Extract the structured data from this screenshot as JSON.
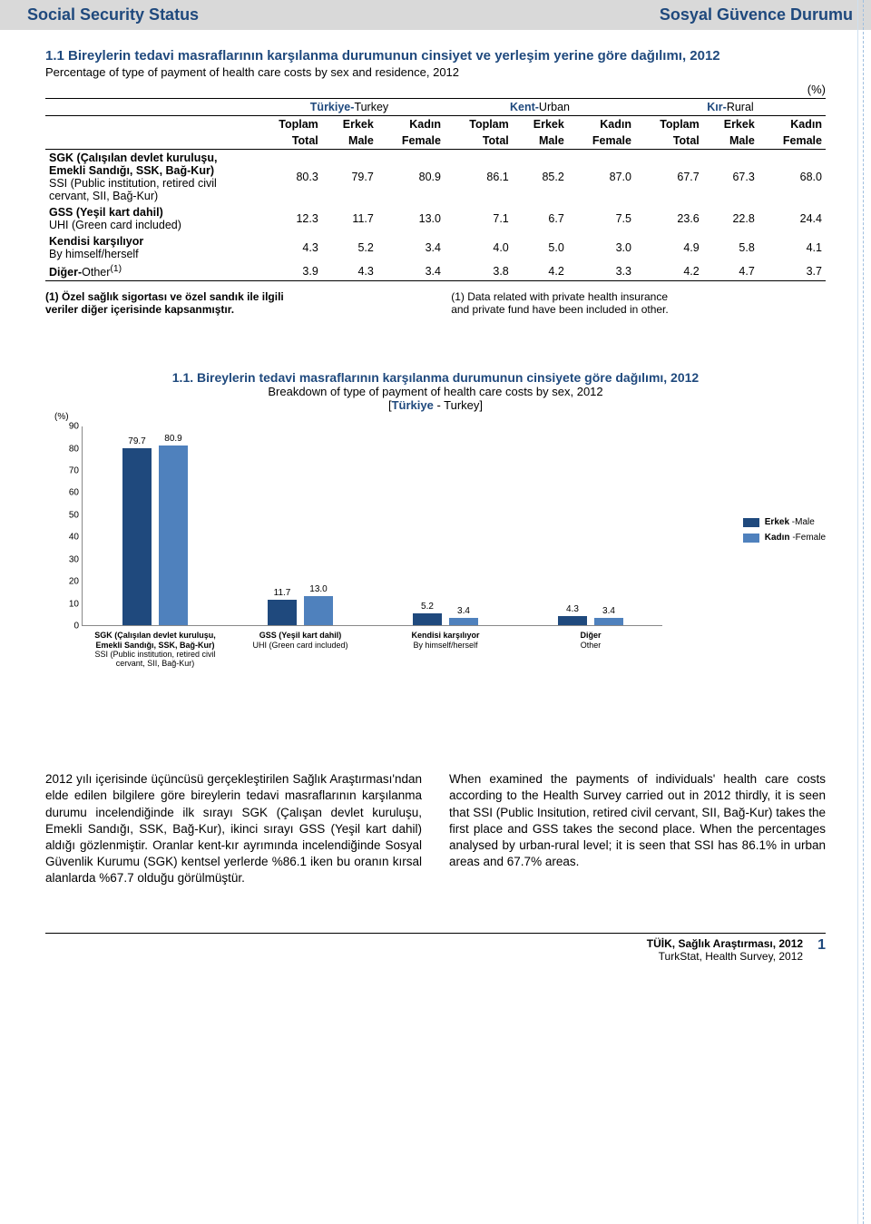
{
  "header": {
    "left": "Social Security Status",
    "right": "Sosyal Güvence Durumu"
  },
  "table": {
    "title_tr": "1.1 Bireylerin tedavi masraflarının karşılanma durumunun cinsiyet ve yerleşim yerine göre dağılımı, 2012",
    "title_en": "Percentage of type of payment of health care costs by sex and residence, 2012",
    "unit": "(%)",
    "group_headers": [
      {
        "tr": "Türkiye-",
        "en": "Turkey"
      },
      {
        "tr": "Kent-",
        "en": "Urban"
      },
      {
        "tr": "Kır-",
        "en": "Rural"
      }
    ],
    "sub_headers_tr": [
      "Toplam",
      "Erkek",
      "Kadın"
    ],
    "sub_headers_en": [
      "Total",
      "Male",
      "Female"
    ],
    "rows": [
      {
        "label_tr": "SGK (Çalışılan devlet kuruluşu, Emekli Sandığı, SSK, Bağ-Kur)",
        "label_en": "SSI (Public institution, retired civil cervant, SII, Bağ-Kur)",
        "values": [
          "80.3",
          "79.7",
          "80.9",
          "86.1",
          "85.2",
          "87.0",
          "67.7",
          "67.3",
          "68.0"
        ]
      },
      {
        "label_tr": "GSS (Yeşil kart dahil)",
        "label_en": "UHI (Green card included)",
        "values": [
          "12.3",
          "11.7",
          "13.0",
          "7.1",
          "6.7",
          "7.5",
          "23.6",
          "22.8",
          "24.4"
        ]
      },
      {
        "label_tr": "Kendisi karşılıyor",
        "label_en": "By himself/herself",
        "values": [
          "4.3",
          "5.2",
          "3.4",
          "4.0",
          "5.0",
          "3.0",
          "4.9",
          "5.8",
          "4.1"
        ]
      },
      {
        "label_tr_html": "Diğer-",
        "label_en_inline": "Other",
        "sup": "(1)",
        "values": [
          "3.9",
          "4.3",
          "3.4",
          "3.8",
          "4.2",
          "3.3",
          "4.2",
          "4.7",
          "3.7"
        ]
      }
    ],
    "footnote_tr_bold": "(1) Özel sağlık sigortası ve özel sandık ile ilgili",
    "footnote_tr_rest": "veriler diğer içerisinde kapsanmıştır.",
    "footnote_en_l1": "(1) Data related with private health insurance",
    "footnote_en_l2": "and private fund have been included in other."
  },
  "chart": {
    "title_tr": "1.1. Bireylerin tedavi masraflarının karşılanma durumunun cinsiyete göre dağılımı, 2012",
    "title_en": "Breakdown of type of payment of health care costs by sex, 2012",
    "region_tr": "Türkiye",
    "region_en": " - Turkey",
    "y_unit": "(%)",
    "ymax": 90,
    "ytick_step": 10,
    "colors": {
      "male": "#1f497d",
      "female": "#4f81bd"
    },
    "legend": [
      {
        "tr": "Erkek",
        "en": " -Male",
        "color": "#1f497d"
      },
      {
        "tr": "Kadın",
        "en": " -Female",
        "color": "#4f81bd"
      }
    ],
    "categories": [
      {
        "label_tr": "SGK (Çalışılan devlet kuruluşu, Emekli Sandığı, SSK, Bağ-Kur)",
        "label_en": "SSI (Public institution, retired civil cervant, SII, Bağ-Kur)",
        "male": 79.7,
        "female": 80.9
      },
      {
        "label_tr": "GSS (Yeşil kart dahil)",
        "label_en": "UHI (Green card included)",
        "male": 11.7,
        "female": 13.0
      },
      {
        "label_tr": "Kendisi karşılıyor",
        "label_en": "By himself/herself",
        "male": 5.2,
        "female": 3.4
      },
      {
        "label_tr": "Diğer",
        "label_en": "Other",
        "male": 4.3,
        "female": 3.4
      }
    ]
  },
  "body": {
    "tr": "2012 yılı içerisinde üçüncüsü gerçekleştirilen Sağlık Araştırması'ndan elde edilen bilgilere göre bireylerin tedavi masraflarının karşılanma durumu incelendiğinde ilk sırayı SGK (Çalışan devlet kuruluşu, Emekli Sandığı, SSK, Bağ-Kur), ikinci sırayı GSS (Yeşil kart dahil) aldığı gözlenmiştir. Oranlar kent-kır ayrımında incelendiğinde Sosyal Güvenlik Kurumu (SGK) kentsel yerlerde %86.1 iken bu oranın kırsal alanlarda  %67.7 olduğu görülmüştür.",
    "en": "When examined the payments of individuals' health care costs according to the Health Survey carried out in 2012 thirdly, it is seen that SSI (Public Insitution, retired civil cervant, SII, Bağ-Kur) takes the first place and GSS takes the second place. When the percentages analysed by urban-rural level; it is seen that SSI has 86.1% in urban areas and 67.7% areas."
  },
  "footer": {
    "src_tr": "TÜİK, Sağlık Araştırması, 2012",
    "src_en": "TurkStat, Health Survey, 2012",
    "page": "1"
  }
}
